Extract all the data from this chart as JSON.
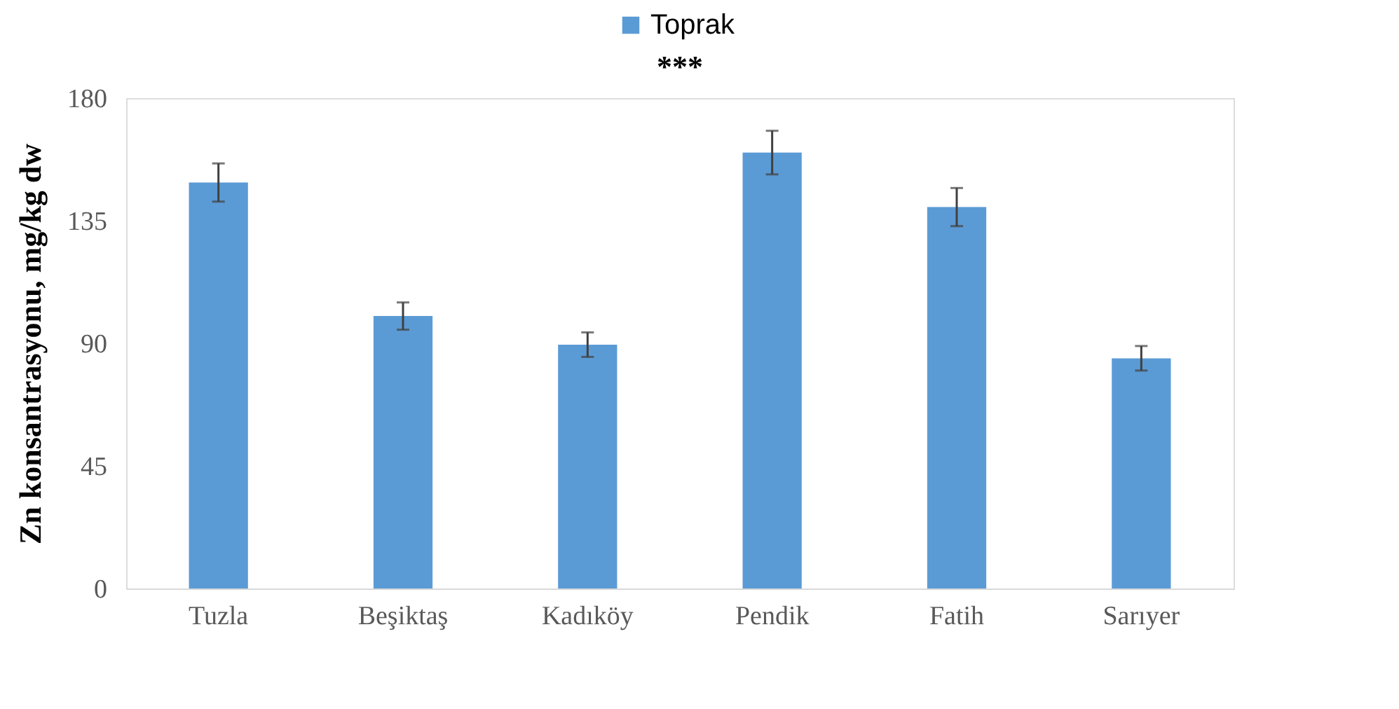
{
  "chart_data": {
    "type": "bar",
    "ylabel": "Zn konsantrasyonu, mg/kg dw",
    "categories": [
      "Tuzla",
      "Beşiktaş",
      "Kadıköy",
      "Pendik",
      "Fatih",
      "Sarıyer"
    ],
    "series": [
      {
        "name": "Toprak",
        "color": "#5b9bd5",
        "values": [
          149,
          100,
          89.5,
          160,
          140,
          84.5
        ],
        "errors": [
          7,
          5,
          4.5,
          8,
          7,
          4.5
        ]
      }
    ],
    "ylim": [
      0,
      180
    ],
    "yticks": [
      0,
      45,
      90,
      135,
      180
    ],
    "grid": false,
    "legend": "top",
    "annotations": [
      "***"
    ]
  }
}
